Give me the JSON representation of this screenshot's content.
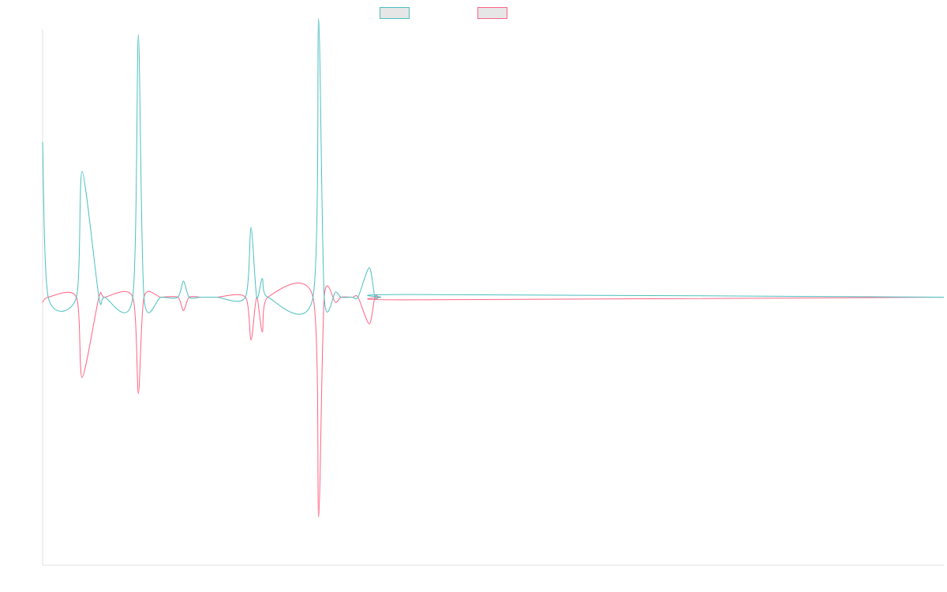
{
  "chart_data": {
    "type": "line",
    "title": "",
    "xlabel": "",
    "ylabel": "",
    "grid": false,
    "legend_position": "top",
    "ylim": [
      -100,
      100
    ],
    "x": [
      0,
      1,
      6,
      7,
      10,
      11,
      16,
      17,
      18,
      21,
      24,
      25,
      26,
      28,
      29,
      30,
      31,
      36,
      37,
      38,
      39,
      40,
      48,
      49,
      50,
      52,
      53,
      55,
      56,
      58,
      59,
      60,
      65,
      160
    ],
    "series": [
      {
        "name": "",
        "color": "#4bc0c0",
        "values": [
          58,
          0,
          0,
          47,
          0,
          0,
          0,
          98,
          0,
          0,
          0,
          6,
          0,
          0,
          0,
          0,
          0,
          0,
          26,
          0,
          7,
          0,
          0,
          104,
          0,
          2,
          0,
          0,
          0,
          11,
          0,
          0,
          1,
          0
        ]
      },
      {
        "name": "",
        "color": "#ff6384",
        "values": [
          -2,
          0,
          0,
          -30,
          0,
          0,
          0,
          -36,
          0,
          0,
          0,
          -5,
          0,
          0,
          0,
          0,
          0,
          0,
          -16,
          0,
          -13,
          0,
          0,
          -82,
          0,
          -2,
          0,
          0,
          0,
          -10,
          0,
          0,
          -1,
          0
        ]
      }
    ],
    "legend": [
      {
        "label": "",
        "color": "#4bc0c0"
      },
      {
        "label": "",
        "color": "#ff6384"
      }
    ]
  }
}
